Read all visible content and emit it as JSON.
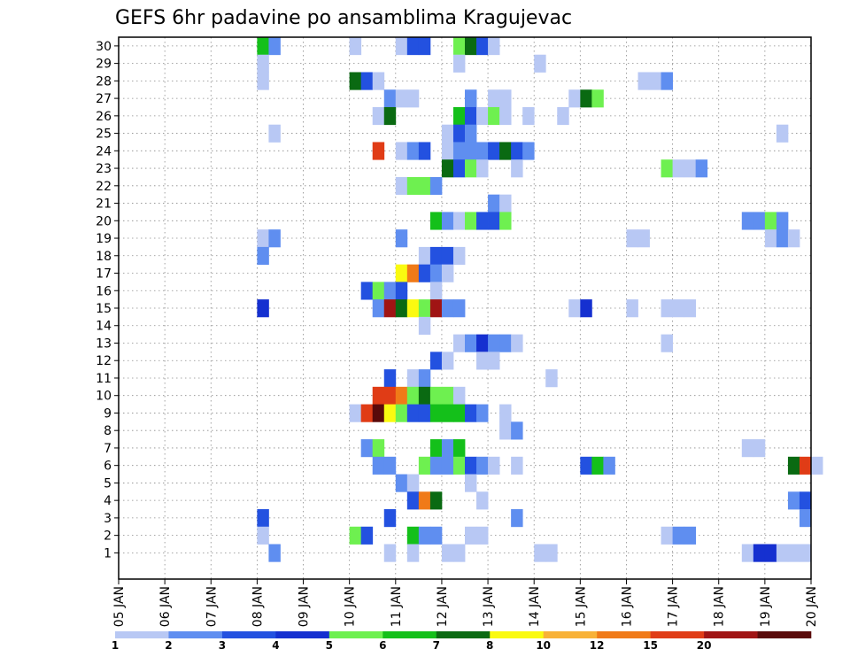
{
  "chart_data": {
    "type": "heatmap",
    "title": "GEFS 6hr padavine po ansamblima Kragujevac",
    "xlabel": "",
    "ylabel": "",
    "x_ticks": [
      "05 JAN",
      "06 JAN",
      "07 JAN",
      "08 JAN",
      "09 JAN",
      "10 JAN",
      "11 JAN",
      "12 JAN",
      "13 JAN",
      "14 JAN",
      "15 JAN",
      "16 JAN",
      "17 JAN",
      "18 JAN",
      "19 JAN",
      "20 JAN"
    ],
    "y_ticks": [
      1,
      2,
      3,
      4,
      5,
      6,
      7,
      8,
      9,
      10,
      11,
      12,
      13,
      14,
      15,
      16,
      17,
      18,
      19,
      20,
      21,
      22,
      23,
      24,
      25,
      26,
      27,
      28,
      29,
      30
    ],
    "grid": true,
    "colorbar": {
      "levels": [
        "1",
        "2",
        "3",
        "4",
        "5",
        "6",
        "7",
        "8",
        "10",
        "12",
        "15",
        "20"
      ],
      "colors": [
        "#b8c8f4",
        "#5f8ef0",
        "#2351e0",
        "#1530d0",
        "#6ef050",
        "#14c01a",
        "#0a6a12",
        "#fafa10",
        "#f8b238",
        "#f07a18",
        "#e03c16",
        "#a01414",
        "#5a0a0a"
      ]
    },
    "cell_data_format": "[member, day_offset_from_05_JAN, level_index]",
    "cells": [
      [
        30,
        3,
        5
      ],
      [
        30,
        3.25,
        1
      ],
      [
        30,
        5,
        0
      ],
      [
        30,
        6,
        0
      ],
      [
        30,
        6.25,
        2
      ],
      [
        30,
        6.5,
        2
      ],
      [
        30,
        7.25,
        4
      ],
      [
        30,
        7.5,
        6
      ],
      [
        30,
        7.75,
        2
      ],
      [
        30,
        8,
        0
      ],
      [
        29,
        3,
        0
      ],
      [
        29,
        7.25,
        0
      ],
      [
        29,
        9,
        0
      ],
      [
        28,
        3,
        0
      ],
      [
        28,
        5,
        6
      ],
      [
        28,
        5.25,
        2
      ],
      [
        28,
        5.5,
        0
      ],
      [
        28,
        11.25,
        0
      ],
      [
        28,
        11.5,
        0
      ],
      [
        28,
        11.75,
        1
      ],
      [
        27,
        5.75,
        1
      ],
      [
        27,
        6,
        0
      ],
      [
        27,
        6.25,
        0
      ],
      [
        27,
        7.5,
        1
      ],
      [
        27,
        8,
        0
      ],
      [
        27,
        8.25,
        0
      ],
      [
        27,
        9.75,
        0
      ],
      [
        27,
        10,
        6
      ],
      [
        27,
        10.25,
        4
      ],
      [
        26,
        5.5,
        0
      ],
      [
        26,
        5.75,
        6
      ],
      [
        26,
        7.25,
        5
      ],
      [
        26,
        7.5,
        2
      ],
      [
        26,
        7.75,
        0
      ],
      [
        26,
        8,
        4
      ],
      [
        26,
        8.25,
        0
      ],
      [
        26,
        8.75,
        0
      ],
      [
        26,
        9.5,
        0
      ],
      [
        25,
        3.25,
        0
      ],
      [
        25,
        7,
        0
      ],
      [
        25,
        7.25,
        2
      ],
      [
        25,
        7.5,
        1
      ],
      [
        25,
        14.25,
        0
      ],
      [
        24,
        5.5,
        10
      ],
      [
        24,
        6,
        0
      ],
      [
        24,
        6.25,
        1
      ],
      [
        24,
        6.5,
        2
      ],
      [
        24,
        7,
        0
      ],
      [
        24,
        7.25,
        1
      ],
      [
        24,
        7.5,
        1
      ],
      [
        24,
        7.75,
        1
      ],
      [
        24,
        8,
        2
      ],
      [
        24,
        8.25,
        6
      ],
      [
        24,
        8.5,
        2
      ],
      [
        24,
        8.75,
        1
      ],
      [
        23,
        7,
        6
      ],
      [
        23,
        7.25,
        2
      ],
      [
        23,
        7.5,
        4
      ],
      [
        23,
        7.75,
        0
      ],
      [
        23,
        8.5,
        0
      ],
      [
        23,
        11.75,
        4
      ],
      [
        23,
        12,
        0
      ],
      [
        23,
        12.25,
        0
      ],
      [
        23,
        12.5,
        1
      ],
      [
        22,
        6,
        0
      ],
      [
        22,
        6.25,
        4
      ],
      [
        22,
        6.5,
        4
      ],
      [
        22,
        6.75,
        1
      ],
      [
        21,
        8,
        1
      ],
      [
        21,
        8.25,
        0
      ],
      [
        20,
        6.75,
        5
      ],
      [
        20,
        7,
        1
      ],
      [
        20,
        7.25,
        0
      ],
      [
        20,
        7.5,
        4
      ],
      [
        20,
        7.75,
        2
      ],
      [
        20,
        8,
        2
      ],
      [
        20,
        8.25,
        4
      ],
      [
        20,
        13.5,
        1
      ],
      [
        20,
        13.75,
        1
      ],
      [
        20,
        14,
        4
      ],
      [
        20,
        14.25,
        1
      ],
      [
        19,
        3,
        0
      ],
      [
        19,
        3.25,
        1
      ],
      [
        19,
        6,
        1
      ],
      [
        19,
        11,
        0
      ],
      [
        19,
        11.25,
        0
      ],
      [
        19,
        14,
        0
      ],
      [
        19,
        14.25,
        1
      ],
      [
        19,
        14.5,
        0
      ],
      [
        18,
        3,
        1
      ],
      [
        18,
        6.5,
        0
      ],
      [
        18,
        6.75,
        2
      ],
      [
        18,
        7,
        2
      ],
      [
        18,
        7.25,
        0
      ],
      [
        17,
        6,
        7
      ],
      [
        17,
        6.25,
        9
      ],
      [
        17,
        6.5,
        2
      ],
      [
        17,
        6.75,
        1
      ],
      [
        17,
        7,
        0
      ],
      [
        16,
        5.25,
        2
      ],
      [
        16,
        5.5,
        4
      ],
      [
        16,
        5.75,
        1
      ],
      [
        16,
        6,
        2
      ],
      [
        16,
        6.75,
        0
      ],
      [
        15,
        3,
        3
      ],
      [
        15,
        5.5,
        1
      ],
      [
        15,
        5.75,
        11
      ],
      [
        15,
        6,
        6
      ],
      [
        15,
        6.25,
        7
      ],
      [
        15,
        6.5,
        4
      ],
      [
        15,
        6.75,
        11
      ],
      [
        15,
        7,
        1
      ],
      [
        15,
        7.25,
        1
      ],
      [
        15,
        9.75,
        0
      ],
      [
        15,
        10,
        3
      ],
      [
        15,
        11,
        0
      ],
      [
        15,
        11.75,
        0
      ],
      [
        15,
        12,
        0
      ],
      [
        15,
        12.25,
        0
      ],
      [
        14,
        6.5,
        0
      ],
      [
        13,
        7.25,
        0
      ],
      [
        13,
        7.5,
        1
      ],
      [
        13,
        7.75,
        3
      ],
      [
        13,
        8,
        1
      ],
      [
        13,
        8.25,
        1
      ],
      [
        13,
        8.5,
        0
      ],
      [
        13,
        11.75,
        0
      ],
      [
        12,
        6.75,
        2
      ],
      [
        12,
        7,
        0
      ],
      [
        12,
        7.75,
        0
      ],
      [
        12,
        8,
        0
      ],
      [
        11,
        5.75,
        2
      ],
      [
        11,
        6.25,
        0
      ],
      [
        11,
        6.5,
        1
      ],
      [
        11,
        9.25,
        0
      ],
      [
        10,
        5.5,
        10
      ],
      [
        10,
        5.75,
        10
      ],
      [
        10,
        6,
        9
      ],
      [
        10,
        6.25,
        4
      ],
      [
        10,
        6.5,
        6
      ],
      [
        10,
        6.75,
        4
      ],
      [
        10,
        7,
        4
      ],
      [
        10,
        7.25,
        0
      ],
      [
        9,
        5,
        0
      ],
      [
        9,
        5.25,
        10
      ],
      [
        9,
        5.5,
        12
      ],
      [
        9,
        5.75,
        7
      ],
      [
        9,
        6,
        4
      ],
      [
        9,
        6.25,
        2
      ],
      [
        9,
        6.5,
        2
      ],
      [
        9,
        6.75,
        5
      ],
      [
        9,
        7,
        5
      ],
      [
        9,
        7.25,
        5
      ],
      [
        9,
        7.5,
        2
      ],
      [
        9,
        7.75,
        1
      ],
      [
        9,
        8.25,
        0
      ],
      [
        8,
        8.25,
        0
      ],
      [
        8,
        8.5,
        1
      ],
      [
        7,
        5.25,
        1
      ],
      [
        7,
        5.5,
        4
      ],
      [
        7,
        6.75,
        5
      ],
      [
        7,
        7,
        1
      ],
      [
        7,
        7.25,
        5
      ],
      [
        7,
        13.5,
        0
      ],
      [
        7,
        13.75,
        0
      ],
      [
        6,
        5.5,
        1
      ],
      [
        6,
        5.75,
        1
      ],
      [
        6,
        6.5,
        4
      ],
      [
        6,
        6.75,
        1
      ],
      [
        6,
        7,
        1
      ],
      [
        6,
        7.25,
        4
      ],
      [
        6,
        7.5,
        2
      ],
      [
        6,
        7.75,
        1
      ],
      [
        6,
        8,
        0
      ],
      [
        6,
        8.5,
        0
      ],
      [
        6,
        10,
        2
      ],
      [
        6,
        10.25,
        5
      ],
      [
        6,
        10.5,
        1
      ],
      [
        6,
        14.5,
        6
      ],
      [
        6,
        14.75,
        10
      ],
      [
        6,
        15,
        0
      ],
      [
        5,
        6,
        1
      ],
      [
        5,
        6.25,
        0
      ],
      [
        5,
        7.5,
        0
      ],
      [
        4,
        6.25,
        2
      ],
      [
        4,
        6.5,
        9
      ],
      [
        4,
        6.75,
        6
      ],
      [
        4,
        7.75,
        0
      ],
      [
        4,
        14.5,
        1
      ],
      [
        4,
        14.75,
        2
      ],
      [
        3,
        3,
        2
      ],
      [
        3,
        5.75,
        2
      ],
      [
        3,
        8.5,
        1
      ],
      [
        3,
        14.75,
        1
      ],
      [
        2,
        3,
        0
      ],
      [
        2,
        5,
        4
      ],
      [
        2,
        5.25,
        2
      ],
      [
        2,
        6.25,
        5
      ],
      [
        2,
        6.5,
        1
      ],
      [
        2,
        6.75,
        1
      ],
      [
        2,
        7.5,
        0
      ],
      [
        2,
        7.75,
        0
      ],
      [
        2,
        11.75,
        0
      ],
      [
        2,
        12,
        1
      ],
      [
        2,
        12.25,
        1
      ],
      [
        1,
        3.25,
        1
      ],
      [
        1,
        5.75,
        0
      ],
      [
        1,
        6.25,
        0
      ],
      [
        1,
        7,
        0
      ],
      [
        1,
        7.25,
        0
      ],
      [
        1,
        9,
        0
      ],
      [
        1,
        9.25,
        0
      ],
      [
        1,
        13.5,
        0
      ],
      [
        1,
        13.75,
        3
      ],
      [
        1,
        14,
        3
      ],
      [
        1,
        14.25,
        0
      ],
      [
        1,
        14.5,
        0
      ],
      [
        1,
        14.75,
        0
      ]
    ]
  }
}
